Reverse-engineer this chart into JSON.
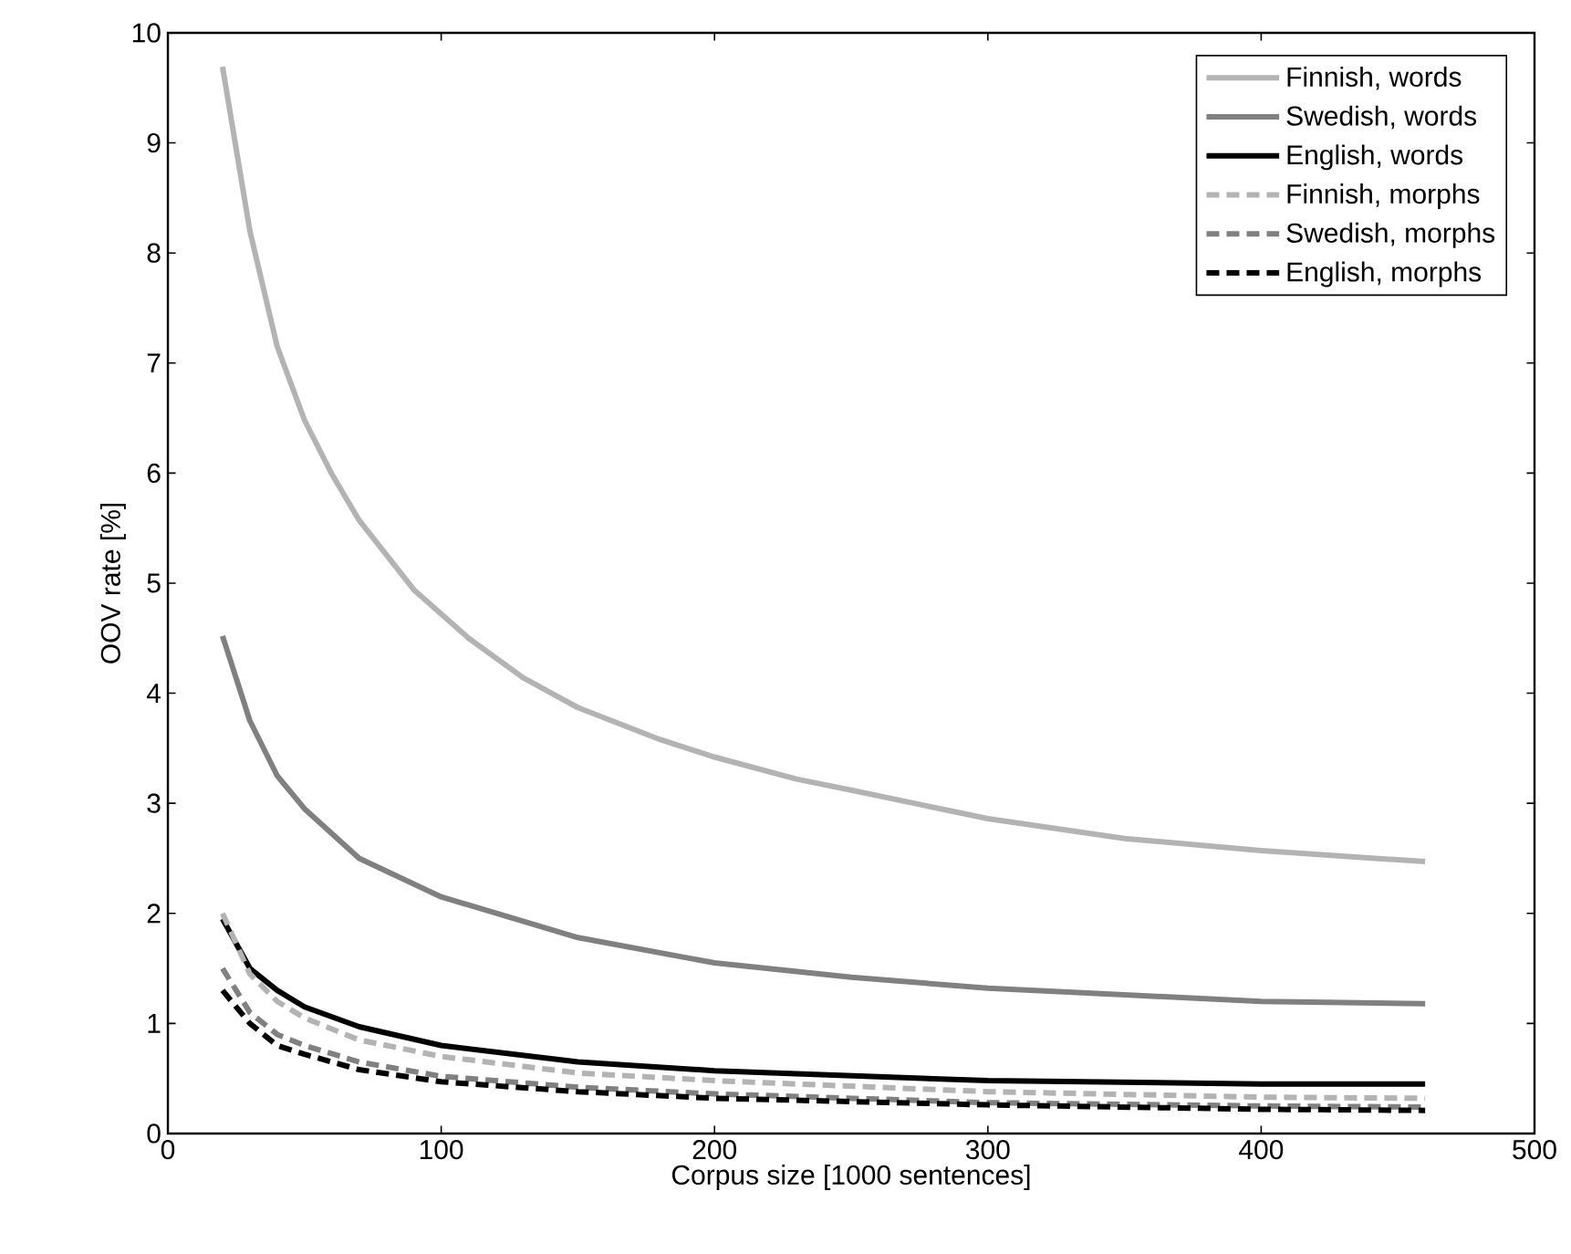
{
  "chart_data": {
    "type": "line",
    "xlabel": "Corpus size [1000 sentences]",
    "ylabel": "OOV rate [%]",
    "xlim": [
      0,
      500
    ],
    "ylim": [
      0,
      10
    ],
    "xticks": [
      0,
      100,
      200,
      300,
      400,
      500
    ],
    "yticks": [
      0,
      1,
      2,
      3,
      4,
      5,
      6,
      7,
      8,
      9,
      10
    ],
    "legend": "top right",
    "grid": false,
    "marker": "none",
    "series": [
      {
        "name": "Finnish, words",
        "color": "#b3b3b3",
        "line_style": "solid",
        "x": [
          20,
          30,
          40,
          50,
          60,
          70,
          90,
          100,
          110,
          130,
          150,
          180,
          200,
          230,
          250,
          300,
          350,
          400,
          460
        ],
        "values": [
          9.69,
          8.2,
          7.15,
          6.48,
          5.99,
          5.57,
          4.94,
          4.72,
          4.5,
          4.14,
          3.87,
          3.58,
          3.42,
          3.22,
          3.12,
          2.86,
          2.68,
          2.57,
          2.47
        ]
      },
      {
        "name": "Swedish, words",
        "color": "#808080",
        "line_style": "solid",
        "x": [
          20,
          30,
          40,
          50,
          70,
          100,
          150,
          200,
          250,
          300,
          350,
          400,
          460
        ],
        "values": [
          4.52,
          3.75,
          3.25,
          2.95,
          2.5,
          2.15,
          1.78,
          1.55,
          1.42,
          1.32,
          1.26,
          1.2,
          1.18
        ]
      },
      {
        "name": "English, words",
        "color": "#000000",
        "line_style": "solid",
        "x": [
          20,
          30,
          40,
          50,
          70,
          100,
          150,
          200,
          300,
          400,
          460
        ],
        "values": [
          1.95,
          1.5,
          1.3,
          1.15,
          0.97,
          0.8,
          0.65,
          0.57,
          0.48,
          0.45,
          0.45
        ]
      },
      {
        "name": "Finnish, morphs",
        "color": "#b3b3b3",
        "line_style": "dashed",
        "x": [
          20,
          30,
          40,
          50,
          70,
          100,
          150,
          200,
          300,
          400,
          460
        ],
        "values": [
          2.0,
          1.45,
          1.2,
          1.05,
          0.85,
          0.7,
          0.55,
          0.48,
          0.38,
          0.33,
          0.32
        ]
      },
      {
        "name": "Swedish, morphs",
        "color": "#808080",
        "line_style": "dashed",
        "x": [
          20,
          30,
          40,
          50,
          70,
          100,
          150,
          200,
          300,
          400,
          460
        ],
        "values": [
          1.5,
          1.1,
          0.9,
          0.8,
          0.65,
          0.52,
          0.42,
          0.36,
          0.28,
          0.25,
          0.24
        ]
      },
      {
        "name": "English, morphs",
        "color": "#000000",
        "line_style": "dashed",
        "x": [
          20,
          30,
          40,
          50,
          70,
          100,
          150,
          200,
          300,
          400,
          460
        ],
        "values": [
          1.3,
          1.0,
          0.8,
          0.72,
          0.58,
          0.47,
          0.38,
          0.32,
          0.26,
          0.22,
          0.21
        ]
      }
    ]
  }
}
